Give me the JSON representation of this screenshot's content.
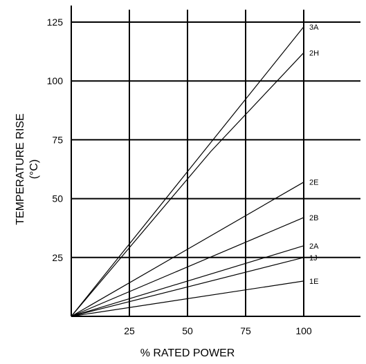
{
  "chart_data": {
    "type": "line",
    "xlabel": "% RATED POWER",
    "ylabel": "TEMPERATURE RISE",
    "ylabel_unit": "(°C)",
    "xlim": [
      0,
      125
    ],
    "ylim": [
      0,
      125
    ],
    "x_ticks": [
      25,
      50,
      75,
      100
    ],
    "y_ticks": [
      25,
      50,
      75,
      100,
      125
    ],
    "grid": true,
    "legend": "inline labels at line ends",
    "series": [
      {
        "name": "3A",
        "x": [
          0,
          100
        ],
        "y": [
          0,
          123
        ]
      },
      {
        "name": "2H",
        "x": [
          0,
          60,
          100
        ],
        "y": [
          0,
          70,
          112
        ]
      },
      {
        "name": "2E",
        "x": [
          0,
          100
        ],
        "y": [
          0,
          57
        ]
      },
      {
        "name": "2B",
        "x": [
          0,
          100
        ],
        "y": [
          0,
          42
        ]
      },
      {
        "name": "2A",
        "x": [
          0,
          100
        ],
        "y": [
          0,
          30
        ]
      },
      {
        "name": "1J",
        "x": [
          0,
          100
        ],
        "y": [
          0,
          25
        ]
      },
      {
        "name": "1E",
        "x": [
          0,
          100
        ],
        "y": [
          0,
          15
        ]
      }
    ]
  }
}
